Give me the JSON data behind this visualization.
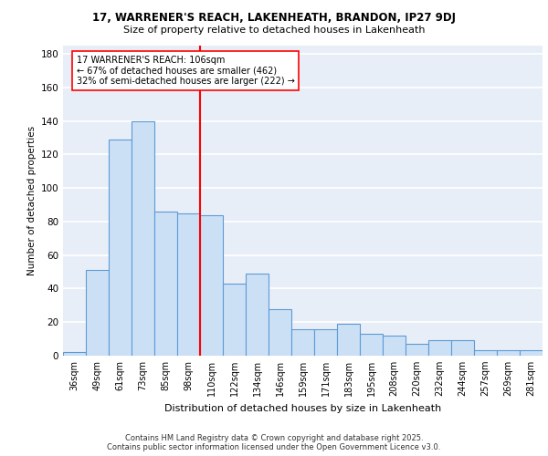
{
  "title1": "17, WARRENER'S REACH, LAKENHEATH, BRANDON, IP27 9DJ",
  "title2": "Size of property relative to detached houses in Lakenheath",
  "xlabel": "Distribution of detached houses by size in Lakenheath",
  "ylabel": "Number of detached properties",
  "categories": [
    "36sqm",
    "49sqm",
    "61sqm",
    "73sqm",
    "85sqm",
    "98sqm",
    "110sqm",
    "122sqm",
    "134sqm",
    "146sqm",
    "159sqm",
    "171sqm",
    "183sqm",
    "195sqm",
    "208sqm",
    "220sqm",
    "232sqm",
    "244sqm",
    "257sqm",
    "269sqm",
    "281sqm"
  ],
  "values": [
    2,
    51,
    129,
    140,
    86,
    85,
    84,
    43,
    49,
    28,
    16,
    16,
    19,
    13,
    12,
    7,
    9,
    9,
    3,
    3,
    3
  ],
  "bar_color": "#cce0f5",
  "bar_edge_color": "#5b9bd5",
  "vline_color": "red",
  "annotation_text": "17 WARRENER'S REACH: 106sqm\n← 67% of detached houses are smaller (462)\n32% of semi-detached houses are larger (222) →",
  "footer1": "Contains HM Land Registry data © Crown copyright and database right 2025.",
  "footer2": "Contains public sector information licensed under the Open Government Licence v3.0.",
  "ylim": [
    0,
    185
  ],
  "yticks": [
    0,
    20,
    40,
    60,
    80,
    100,
    120,
    140,
    160,
    180
  ],
  "background_color": "#e8eef8",
  "grid_color": "white"
}
